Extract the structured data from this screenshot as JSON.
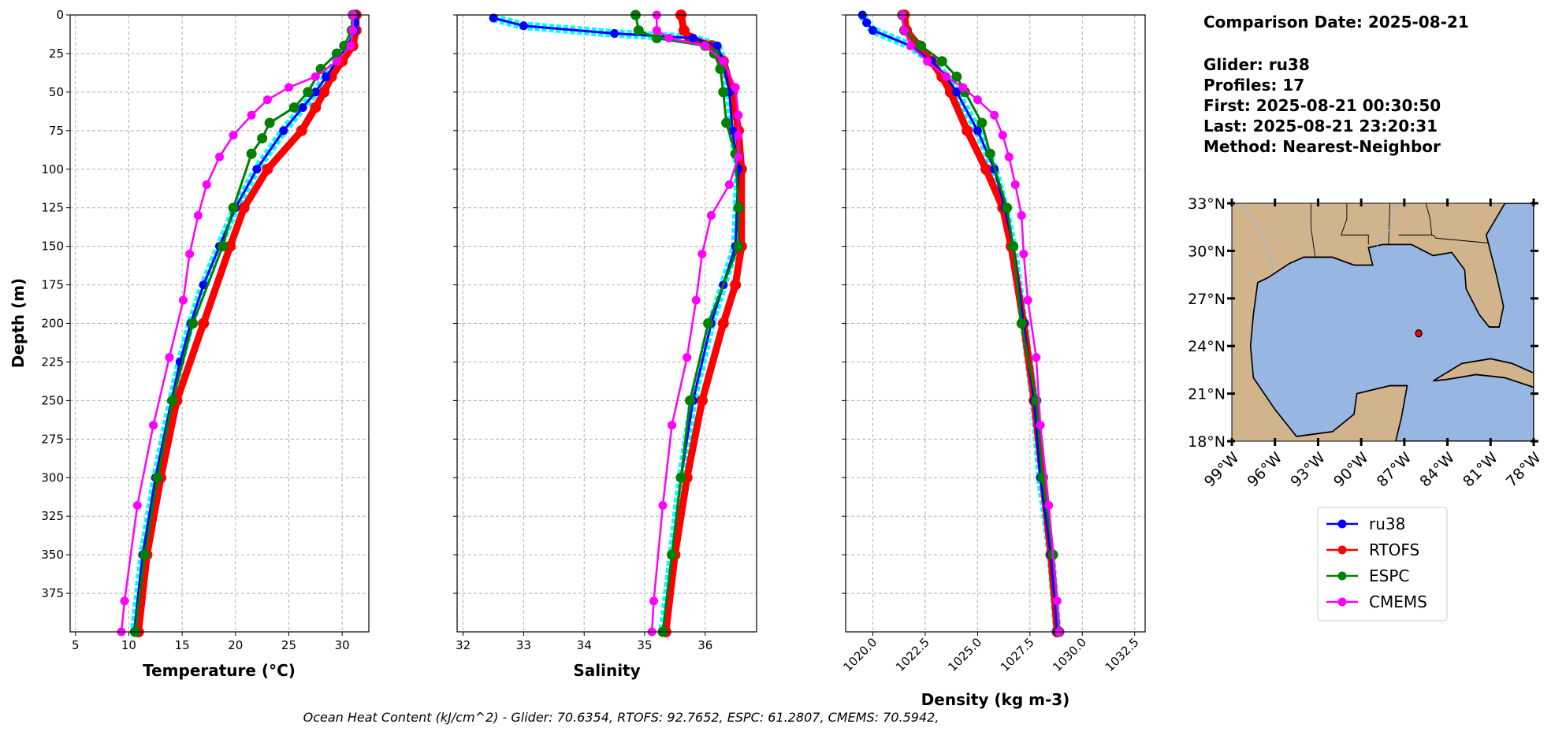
{
  "info": {
    "comparison_date": "Comparison Date: 2025-08-21",
    "glider": "Glider: ru38",
    "profiles": "Profiles: 17",
    "first": "First: 2025-08-21 00:30:50",
    "last": "Last: 2025-08-21 23:20:31",
    "method": "Method: Nearest-Neighbor"
  },
  "caption": "Ocean Heat Content (kJ/cm^2) - Glider: 70.6354,  RTOFS: 92.7652,  ESPC: 61.2807,  CMEMS: 70.5942,",
  "colors": {
    "ru38": "#0000ff",
    "ru38_raw": "#00ffff",
    "RTOFS": "#ff0000",
    "ESPC": "#008000",
    "CMEMS": "#ff00ff",
    "land": "#d2b48c",
    "ocean": "#97b6e1"
  },
  "chart_data": [
    {
      "type": "line",
      "xlabel": "Temperature (°C)",
      "ylabel": "Depth (m)",
      "xlim": [
        4.5,
        32.5
      ],
      "ylim": [
        400,
        0
      ],
      "xticks": [
        5,
        10,
        15,
        20,
        25,
        30
      ],
      "yticks": [
        0,
        25,
        50,
        75,
        100,
        125,
        150,
        175,
        200,
        225,
        250,
        275,
        300,
        325,
        350,
        375
      ],
      "grid": true,
      "series": [
        {
          "name": "ru38",
          "depth": [
            0,
            5,
            10,
            20,
            30,
            40,
            50,
            60,
            75,
            100,
            125,
            150,
            175,
            200,
            225,
            250,
            300,
            350,
            400
          ],
          "values": [
            31.2,
            31.2,
            31.2,
            30.5,
            29.5,
            28.5,
            27.5,
            26.3,
            24.5,
            22.0,
            20.0,
            18.5,
            17.0,
            15.8,
            14.8,
            14.0,
            12.5,
            11.3,
            10.5
          ]
        },
        {
          "name": "RTOFS",
          "depth": [
            0,
            10,
            20,
            30,
            40,
            50,
            60,
            75,
            100,
            125,
            150,
            200,
            250,
            300,
            350,
            400
          ],
          "values": [
            31.3,
            31.3,
            31.0,
            30.0,
            29.0,
            28.3,
            27.5,
            26.2,
            23.0,
            20.8,
            19.5,
            17.0,
            14.5,
            13.0,
            11.7,
            10.9
          ]
        },
        {
          "name": "ESPC",
          "depth": [
            0,
            10,
            20,
            25,
            35,
            50,
            60,
            70,
            80,
            90,
            125,
            150,
            200,
            250,
            300,
            350,
            400
          ],
          "values": [
            31.0,
            30.9,
            30.2,
            29.5,
            28.0,
            26.8,
            25.5,
            23.2,
            22.5,
            21.5,
            19.8,
            18.8,
            16.0,
            14.1,
            12.7,
            11.5,
            10.6
          ]
        },
        {
          "name": "CMEMS",
          "depth": [
            0,
            10,
            20,
            30,
            40,
            47,
            55,
            65,
            78,
            92,
            110,
            130,
            155,
            185,
            222,
            266,
            318,
            380,
            400
          ],
          "values": [
            31.0,
            31.0,
            30.8,
            29.5,
            27.5,
            25.0,
            23.0,
            21.5,
            19.8,
            18.5,
            17.3,
            16.5,
            15.7,
            15.1,
            13.8,
            12.3,
            10.8,
            9.6,
            9.3
          ]
        }
      ]
    },
    {
      "type": "line",
      "xlabel": "Salinity",
      "ylabel": "",
      "xlim": [
        31.9,
        36.85
      ],
      "ylim": [
        400,
        0
      ],
      "xticks": [
        32,
        33,
        34,
        35,
        36
      ],
      "yticks": [
        0,
        25,
        50,
        75,
        100,
        125,
        150,
        175,
        200,
        225,
        250,
        275,
        300,
        325,
        350,
        375
      ],
      "grid": true,
      "series": [
        {
          "name": "ru38",
          "depth": [
            2,
            7,
            12,
            15,
            20,
            30,
            50,
            75,
            100,
            150,
            175,
            200,
            250,
            300,
            350,
            400
          ],
          "values": [
            32.5,
            33.0,
            34.5,
            35.8,
            36.2,
            36.3,
            36.4,
            36.45,
            36.55,
            36.5,
            36.3,
            36.1,
            35.8,
            35.6,
            35.45,
            35.3
          ]
        },
        {
          "name": "RTOFS",
          "depth": [
            0,
            10,
            15,
            20,
            30,
            50,
            75,
            100,
            150,
            175,
            200,
            250,
            300,
            350,
            400
          ],
          "values": [
            35.6,
            35.65,
            35.75,
            36.1,
            36.3,
            36.45,
            36.55,
            36.6,
            36.6,
            36.5,
            36.3,
            35.95,
            35.7,
            35.5,
            35.35
          ]
        },
        {
          "name": "ESPC",
          "depth": [
            0,
            10,
            15,
            20,
            25,
            35,
            50,
            70,
            90,
            125,
            150,
            200,
            250,
            300,
            350,
            400
          ],
          "values": [
            34.85,
            34.9,
            35.2,
            36.0,
            36.15,
            36.25,
            36.3,
            36.35,
            36.5,
            36.55,
            36.55,
            36.05,
            35.75,
            35.6,
            35.45,
            35.3
          ]
        },
        {
          "name": "CMEMS",
          "depth": [
            0,
            10,
            15,
            20,
            30,
            47,
            65,
            78,
            92,
            110,
            130,
            155,
            185,
            222,
            266,
            318,
            380,
            400
          ],
          "values": [
            35.2,
            35.2,
            35.4,
            36.0,
            36.3,
            36.5,
            36.55,
            36.55,
            36.55,
            36.4,
            36.1,
            35.95,
            35.85,
            35.7,
            35.45,
            35.3,
            35.15,
            35.12
          ]
        }
      ]
    },
    {
      "type": "line",
      "xlabel": "Density (kg m-3)",
      "ylabel": "",
      "xlim": [
        1018.7,
        1033.0
      ],
      "ylim": [
        400,
        0
      ],
      "xticks": [
        1020.0,
        1022.5,
        1025.0,
        1027.5,
        1030.0,
        1032.5
      ],
      "yticks": [
        0,
        25,
        50,
        75,
        100,
        125,
        150,
        175,
        200,
        225,
        250,
        275,
        300,
        325,
        350,
        375
      ],
      "grid": true,
      "series": [
        {
          "name": "ru38",
          "depth": [
            0,
            5,
            10,
            20,
            30,
            40,
            50,
            75,
            100,
            125,
            150,
            200,
            250,
            300,
            350,
            400
          ],
          "values": [
            1019.5,
            1019.7,
            1020.0,
            1021.8,
            1022.8,
            1023.5,
            1024.0,
            1025.0,
            1025.8,
            1026.3,
            1026.7,
            1027.2,
            1027.7,
            1028.0,
            1028.5,
            1028.8
          ]
        },
        {
          "name": "RTOFS",
          "depth": [
            0,
            10,
            20,
            30,
            40,
            50,
            75,
            100,
            125,
            150,
            200,
            250,
            300,
            350,
            400
          ],
          "values": [
            1021.5,
            1021.6,
            1022.2,
            1022.8,
            1023.3,
            1023.7,
            1024.5,
            1025.4,
            1026.2,
            1026.6,
            1027.2,
            1027.7,
            1028.1,
            1028.5,
            1028.8
          ]
        },
        {
          "name": "ESPC",
          "depth": [
            0,
            10,
            20,
            30,
            40,
            50,
            70,
            90,
            125,
            150,
            200,
            250,
            300,
            350,
            400
          ],
          "values": [
            1021.4,
            1021.5,
            1022.3,
            1023.3,
            1024.0,
            1024.4,
            1025.2,
            1025.6,
            1026.4,
            1026.7,
            1027.1,
            1027.8,
            1028.1,
            1028.6,
            1028.9
          ]
        },
        {
          "name": "CMEMS",
          "depth": [
            0,
            10,
            20,
            30,
            40,
            47,
            55,
            65,
            78,
            92,
            110,
            130,
            155,
            185,
            222,
            266,
            318,
            380,
            400
          ],
          "values": [
            1021.4,
            1021.5,
            1021.8,
            1022.6,
            1023.5,
            1024.3,
            1025.0,
            1025.8,
            1026.2,
            1026.5,
            1026.8,
            1027.1,
            1027.2,
            1027.4,
            1027.8,
            1028.0,
            1028.4,
            1028.8,
            1028.9
          ]
        }
      ]
    },
    {
      "type": "map",
      "lon_ticks": [
        "99°W",
        "96°W",
        "93°W",
        "90°W",
        "87°W",
        "84°W",
        "81°W",
        "78°W"
      ],
      "lat_ticks": [
        "33°N",
        "30°N",
        "27°N",
        "24°N",
        "21°N",
        "18°N"
      ],
      "lon_range": [
        -99,
        -78
      ],
      "lat_range": [
        18,
        33
      ],
      "glider_position": {
        "lon": -86.0,
        "lat": 24.8
      }
    }
  ],
  "legend": {
    "placement": "below-map",
    "entries": [
      "ru38",
      "RTOFS",
      "ESPC",
      "CMEMS"
    ]
  }
}
